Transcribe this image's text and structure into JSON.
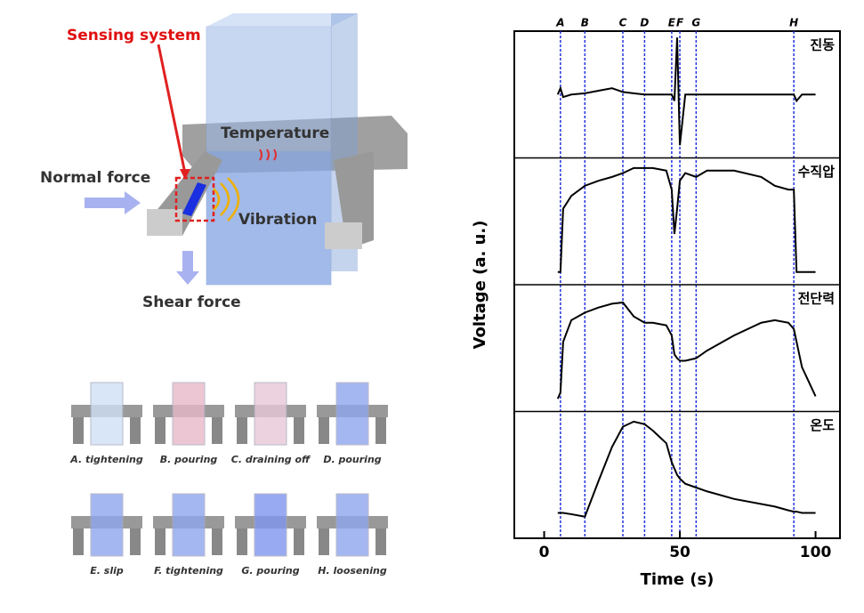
{
  "illustration": {
    "sensing": "Sensing system",
    "temperature": "Temperature",
    "normal": "Normal force",
    "vibration": "Vibration",
    "shear": "Shear force"
  },
  "steps": [
    "A. tightening",
    "B. pouring",
    "C. draining off",
    "D. pouring",
    "E. slip",
    "F. tightening",
    "G. pouring",
    "H. loosening"
  ],
  "chart_data": {
    "type": "line",
    "x_label": "Time (s)",
    "y_label": "Voltage (a. u.)",
    "xlim": [
      -11,
      109
    ],
    "xticks": [
      0,
      50,
      100
    ],
    "ylim": [
      0,
      1
    ],
    "events": [
      {
        "label": "A",
        "x": 6
      },
      {
        "label": "B",
        "x": 15
      },
      {
        "label": "C",
        "x": 29
      },
      {
        "label": "D",
        "x": 37
      },
      {
        "label": "E",
        "x": 47
      },
      {
        "label": "F",
        "x": 50
      },
      {
        "label": "G",
        "x": 56
      },
      {
        "label": "H",
        "x": 92
      }
    ],
    "event_color": "#2233dd",
    "x": [
      5,
      6,
      7,
      10,
      15,
      20,
      25,
      29,
      33,
      37,
      40,
      45,
      47,
      48,
      49,
      50,
      52,
      56,
      60,
      70,
      80,
      85,
      90,
      92,
      93,
      95,
      100
    ],
    "series": [
      {
        "name": "진동",
        "color": "#000000",
        "values": [
          0.5,
          0.55,
          0.48,
          0.5,
          0.51,
          0.53,
          0.55,
          0.52,
          0.51,
          0.5,
          0.5,
          0.5,
          0.5,
          0.45,
          0.95,
          0.1,
          0.5,
          0.5,
          0.5,
          0.5,
          0.5,
          0.5,
          0.5,
          0.5,
          0.45,
          0.5,
          0.5
        ]
      },
      {
        "name": "수직압",
        "color": "#000000",
        "values": [
          0.1,
          0.1,
          0.6,
          0.7,
          0.78,
          0.82,
          0.85,
          0.88,
          0.92,
          0.92,
          0.92,
          0.9,
          0.75,
          0.4,
          0.6,
          0.82,
          0.88,
          0.85,
          0.9,
          0.9,
          0.85,
          0.78,
          0.75,
          0.75,
          0.1,
          0.1,
          0.1
        ]
      },
      {
        "name": "전단력",
        "color": "#000000",
        "values": [
          0.1,
          0.15,
          0.55,
          0.72,
          0.78,
          0.82,
          0.85,
          0.86,
          0.75,
          0.7,
          0.7,
          0.68,
          0.6,
          0.45,
          0.42,
          0.4,
          0.4,
          0.42,
          0.48,
          0.6,
          0.7,
          0.72,
          0.7,
          0.65,
          0.55,
          0.35,
          0.12
        ]
      },
      {
        "name": "온도",
        "color": "#000000",
        "values": [
          0.2,
          0.2,
          0.2,
          0.19,
          0.17,
          0.45,
          0.72,
          0.88,
          0.92,
          0.9,
          0.85,
          0.75,
          0.6,
          0.55,
          0.5,
          0.47,
          0.43,
          0.4,
          0.37,
          0.31,
          0.27,
          0.25,
          0.22,
          0.21,
          0.21,
          0.2,
          0.2
        ]
      }
    ]
  }
}
